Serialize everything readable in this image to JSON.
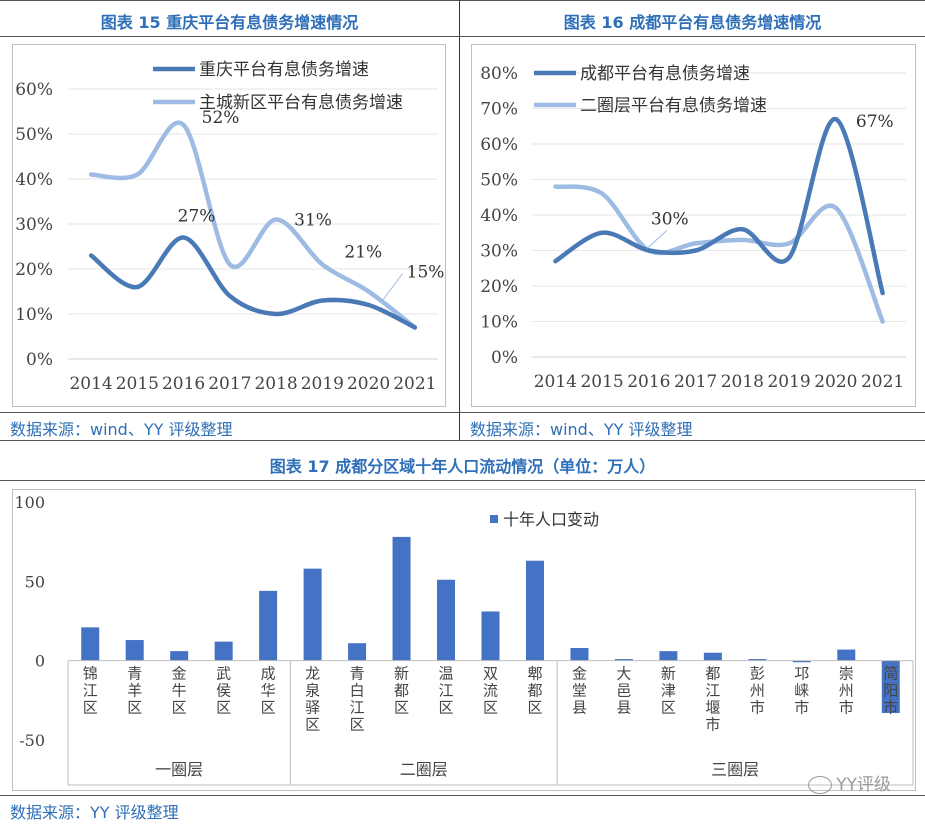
{
  "page": {
    "chart1_title": "图表 15 重庆平台有息债务增速情况",
    "chart2_title": "图表 16 成都平台有息债务增速情况",
    "chart3_title": "图表 17 成都分区域十年人口流动情况（单位：万人）",
    "source1": "数据来源：wind、YY 评级整理",
    "source2": "数据来源：wind、YY 评级整理",
    "source3": "数据来源：YY 评级整理",
    "watermark": "YY评级"
  },
  "chart_data": [
    {
      "type": "line",
      "title": "图表 15 重庆平台有息债务增速情况",
      "x": [
        "2014",
        "2015",
        "2016",
        "2017",
        "2018",
        "2019",
        "2020",
        "2021"
      ],
      "ylim": [
        0,
        60
      ],
      "yticks": [
        "0%",
        "10%",
        "20%",
        "30%",
        "40%",
        "50%",
        "60%"
      ],
      "grid": true,
      "legend": "top-right",
      "series": [
        {
          "name": "重庆平台有息债务增速",
          "color": "#4a7ab5",
          "values": [
            23,
            16,
            27,
            14,
            10,
            13,
            12,
            7
          ]
        },
        {
          "name": "主城新区平台有息债务增速",
          "color": "#9dbbe3",
          "values": [
            41,
            41,
            52,
            21,
            31,
            21,
            15,
            7
          ]
        }
      ],
      "annotations": [
        "52%",
        "27%",
        "31%",
        "21%",
        "15%"
      ]
    },
    {
      "type": "line",
      "title": "图表 16 成都平台有息债务增速情况",
      "x": [
        "2014",
        "2015",
        "2016",
        "2017",
        "2018",
        "2019",
        "2020",
        "2021"
      ],
      "ylim": [
        0,
        80
      ],
      "yticks": [
        "0%",
        "10%",
        "20%",
        "30%",
        "40%",
        "50%",
        "60%",
        "70%",
        "80%"
      ],
      "grid": true,
      "legend": "top-left",
      "series": [
        {
          "name": "成都平台有息债务增速",
          "color": "#4a7ab5",
          "values": [
            27,
            35,
            30,
            30,
            36,
            28,
            67,
            18
          ]
        },
        {
          "name": "二圈层平台有息债务增速",
          "color": "#9dbbe3",
          "values": [
            48,
            46,
            30,
            32,
            33,
            32,
            42,
            10
          ]
        }
      ],
      "annotations": [
        "30%",
        "67%"
      ]
    },
    {
      "type": "bar",
      "title": "图表 17 成都分区域十年人口流动情况（单位：万人）",
      "ylim": [
        -50,
        100
      ],
      "yticks": [
        "-50",
        "0",
        "50",
        "100"
      ],
      "series": [
        {
          "name": "十年人口变动",
          "color": "#4472c4"
        }
      ],
      "categories": [
        "锦江区",
        "青羊区",
        "金牛区",
        "武侯区",
        "成华区",
        "龙泉驿区",
        "青白江区",
        "新都区",
        "温江区",
        "双流区",
        "郫都区",
        "金堂县",
        "大邑县",
        "新津区",
        "都江堰市",
        "彭州市",
        "邛崃市",
        "崇州市",
        "简阳市"
      ],
      "values": [
        21,
        13,
        6,
        12,
        44,
        58,
        11,
        78,
        51,
        31,
        63,
        8,
        1,
        6,
        5,
        1,
        -1,
        7,
        -33
      ],
      "groups": [
        {
          "name": "一圈层",
          "count": 5
        },
        {
          "name": "二圈层",
          "count": 6
        },
        {
          "name": "三圈层",
          "count": 8
        }
      ]
    }
  ]
}
